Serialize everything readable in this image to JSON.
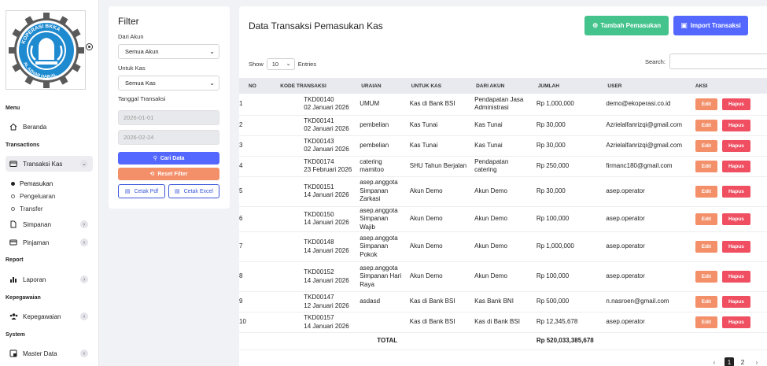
{
  "sidebar": {
    "logo": {
      "top_text": "KOPERASI BKKA",
      "bottom_text": "AL AZHAR HAIKAL"
    },
    "sections": {
      "menu": "Menu",
      "transactions": "Transactions",
      "report": "Report",
      "kepegawaian": "Kepegawaian",
      "system": "System"
    },
    "items": {
      "beranda": "Beranda",
      "transaksi_kas": "Transaksi Kas",
      "pemasukan": "Pemasukan",
      "pengeluaran": "Pengeluaran",
      "transfer": "Transfer",
      "simpanan": "Simpanan",
      "pinjaman": "Pinjaman",
      "laporan": "Laporan",
      "kepegawaian": "Kepegawaian",
      "master_data": "Master Data"
    }
  },
  "filter": {
    "title": "Filter",
    "dari_akun_label": "Dari Akun",
    "dari_akun_value": "Semua Akun",
    "untuk_kas_label": "Untuk Kas",
    "untuk_kas_value": "Semua Kas",
    "tanggal_label": "Tanggal Transaksi",
    "date_from": "2026-01-01",
    "date_to": "2026-02-24",
    "cari_label": "Cari Data",
    "reset_label": "Reset Filter",
    "cetak_pdf_label": "Cetak Pdf",
    "cetak_excel_label": "Cetak Excel"
  },
  "main": {
    "title": "Data Transaksi Pemasukan Kas",
    "tambah_label": "Tambah Pemasukan",
    "import_label": "Import Transaksi",
    "show_label": "Show",
    "show_value": "10",
    "entries_label": "Entries",
    "search_label": "Search:",
    "columns": [
      "NO",
      "KODE TRANSAKSI",
      "URAIAN",
      "UNTUK KAS",
      "DARI AKUN",
      "JUMLAH",
      "USER",
      "AKSI"
    ],
    "rows": [
      {
        "no": "1",
        "kode": "TKD00140",
        "tanggal": "02 Januari 2026",
        "uraian": "UMUM",
        "untuk_kas": "Kas di Bank BSI",
        "dari_akun": "Pendapatan Jasa Administrasi",
        "jumlah": "Rp 1,000,000",
        "user": "demo@ekoperasi.co.id"
      },
      {
        "no": "2",
        "kode": "TKD00141",
        "tanggal": "02 Januari 2026",
        "uraian": "pembelian",
        "untuk_kas": "Kas Tunai",
        "dari_akun": "Kas Tunai",
        "jumlah": "Rp 30,000",
        "user": "Azrielalfanrizqi@gmail.com"
      },
      {
        "no": "3",
        "kode": "TKD00143",
        "tanggal": "02 Januari 2026",
        "uraian": "pembelian",
        "untuk_kas": "Kas Tunai",
        "dari_akun": "Kas Tunai",
        "jumlah": "Rp 30,000",
        "user": "Azrielalfanrizqi@gmail.com"
      },
      {
        "no": "4",
        "kode": "TKD00174",
        "tanggal": "23 Februari 2026",
        "uraian": "catering mamitoo",
        "untuk_kas": "SHU Tahun Berjalan",
        "dari_akun": "Pendapatan catering",
        "jumlah": "Rp 250,000",
        "user": "firmanc180@gmail.com"
      },
      {
        "no": "5",
        "kode": "TKD00151",
        "tanggal": "14 Januari 2026",
        "uraian": "asep.anggota Simpanan Zarkasi",
        "untuk_kas": "Akun Demo",
        "dari_akun": "Akun Demo",
        "jumlah": "Rp 30,000",
        "user": "asep.operator"
      },
      {
        "no": "6",
        "kode": "TKD00150",
        "tanggal": "14 Januari 2026",
        "uraian": "asep.anggota Simpanan Wajib",
        "untuk_kas": "Akun Demo",
        "dari_akun": "Akun Demo",
        "jumlah": "Rp 100,000",
        "user": "asep.operator"
      },
      {
        "no": "7",
        "kode": "TKD00148",
        "tanggal": "14 Januari 2026",
        "uraian": "asep.anggota Simpanan Pokok",
        "untuk_kas": "Akun Demo",
        "dari_akun": "Akun Demo",
        "jumlah": "Rp 1,000,000",
        "user": "asep.operator"
      },
      {
        "no": "8",
        "kode": "TKD00152",
        "tanggal": "14 Januari 2026",
        "uraian": "asep.anggota Simpanan Hari Raya",
        "untuk_kas": "Akun Demo",
        "dari_akun": "Akun Demo",
        "jumlah": "Rp 100,000",
        "user": "asep.operator"
      },
      {
        "no": "9",
        "kode": "TKD00147",
        "tanggal": "12 Januari 2026",
        "uraian": "asdasd",
        "untuk_kas": "Kas di Bank BSI",
        "dari_akun": "Kas Bank BNI",
        "jumlah": "Rp 500,000",
        "user": "n.nasroen@gmail.com"
      },
      {
        "no": "10",
        "kode": "TKD00157",
        "tanggal": "14 Januari 2026",
        "uraian": "",
        "untuk_kas": "Kas di Bank BSI",
        "dari_akun": "Kas di Bank BSI",
        "jumlah": "Rp 12,345,678",
        "user": "asep.operator"
      }
    ],
    "edit_label": "Edit",
    "hapus_label": "Hapus",
    "total_label": "TOTAL",
    "total_value": "Rp 520,033,385,678",
    "pagination": {
      "prev": "‹",
      "pages": [
        "1",
        "2"
      ],
      "next": "›",
      "current": "1"
    }
  },
  "colors": {
    "accent": "#5468ff",
    "tambah": "#45c38d",
    "edit": "#f38f69",
    "hapus": "#ef4f61"
  },
  "icons": [
    "home-icon",
    "wallet-icon",
    "file-icon",
    "card-icon",
    "chart-icon",
    "users-icon",
    "database-icon",
    "search-icon",
    "refresh-icon",
    "plus-circle-icon",
    "file-upload-icon",
    "chevron-down-icon",
    "chevron-right-icon"
  ]
}
